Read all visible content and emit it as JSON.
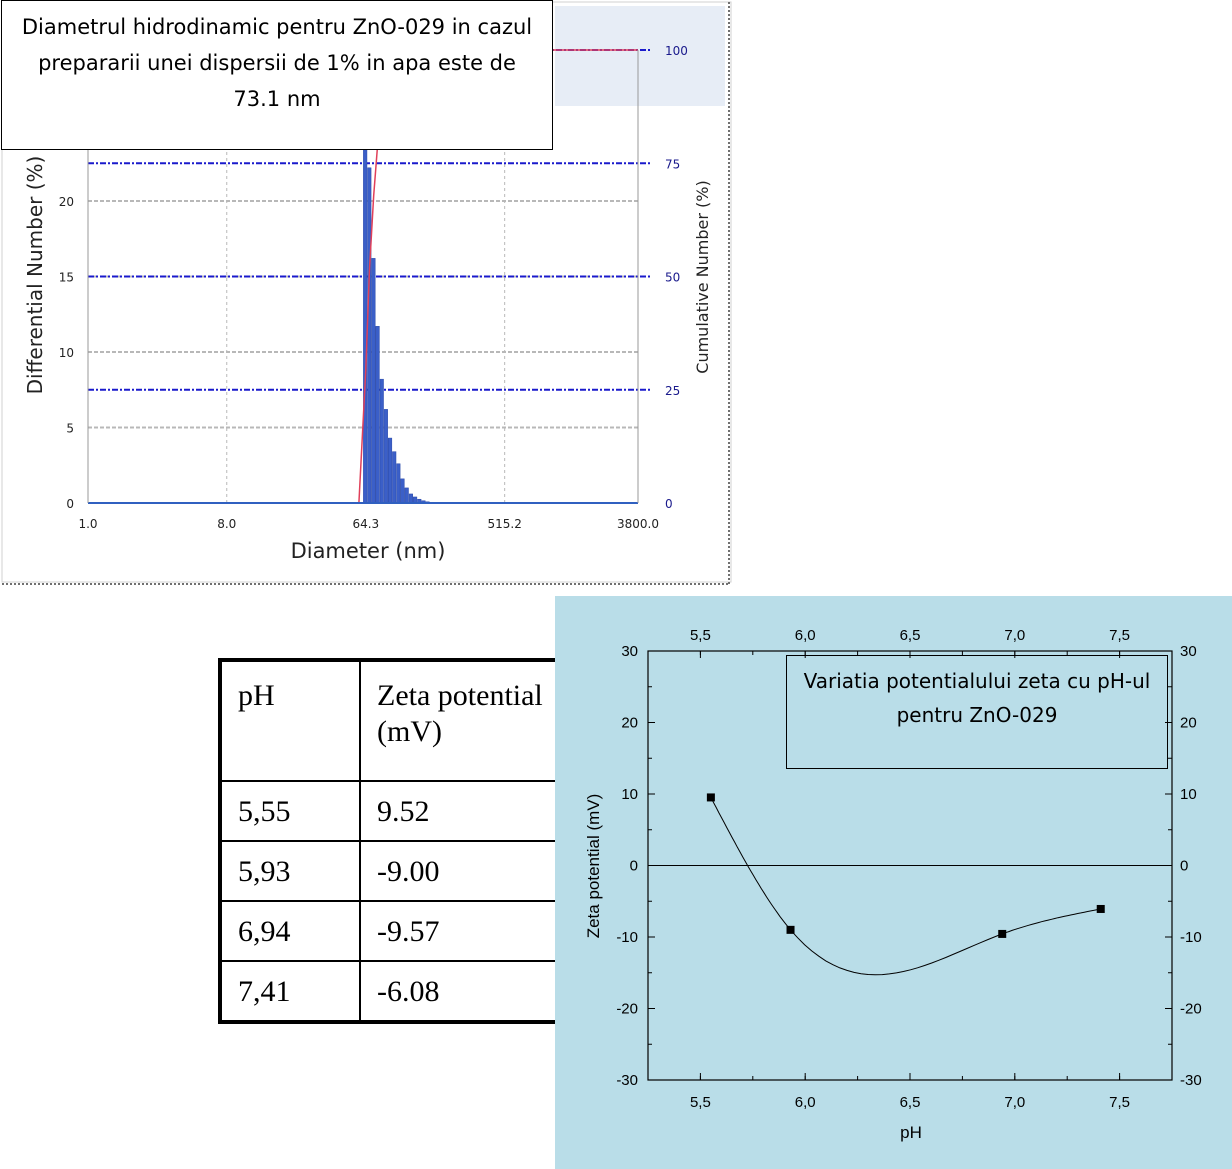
{
  "size_distribution_caption": "Diametrul hidrodinamic pentru ZnO-029 in cazul prepararii unei dispersii de 1% in apa este de 73.1 nm",
  "zeta_caption": "Variatia potentialului zeta cu pH-ul pentru ZnO-029",
  "table": {
    "headers": [
      "pH",
      "Zeta potential (mV)"
    ],
    "rows": [
      [
        "5,55",
        "9.52"
      ],
      [
        "5,93",
        "-9.00"
      ],
      [
        "6,94",
        "-9.57"
      ],
      [
        "7,41",
        "-6.08"
      ]
    ]
  },
  "chart_data": [
    {
      "type": "bar",
      "xlabel": "Diameter (nm)",
      "ylabel": "Differential Number (%)",
      "y2label": "Cumulative Number (%)",
      "xscale": "log",
      "xlim": [
        1.0,
        3800.0
      ],
      "x_ticks": [
        "1.0",
        "8.0",
        "64.3",
        "515.2",
        "3800.0"
      ],
      "ylim": [
        0,
        30
      ],
      "y_ticks": [
        "0",
        "5",
        "10",
        "15",
        "20"
      ],
      "y2lim": [
        0,
        100
      ],
      "y2_ticks": [
        "0",
        "25",
        "50",
        "75",
        "100"
      ],
      "colors": {
        "bars": "#3b5fc8",
        "cumulative": "#e0405a",
        "y2_gridlines": "#1a1acc",
        "grid": "#b8b8b8"
      },
      "series": [
        {
          "kind": "bars",
          "bins": [
            {
              "x": 62,
              "y": 29.5
            },
            {
              "x": 66,
              "y": 22.2
            },
            {
              "x": 70.2,
              "y": 16.2
            },
            {
              "x": 74.7,
              "y": 11.7
            },
            {
              "x": 79.5,
              "y": 8.2
            },
            {
              "x": 84.6,
              "y": 6.2
            },
            {
              "x": 90,
              "y": 4.3
            },
            {
              "x": 95.8,
              "y": 3.4
            },
            {
              "x": 102,
              "y": 2.6
            },
            {
              "x": 108.5,
              "y": 1.6
            },
            {
              "x": 115.5,
              "y": 1.0
            },
            {
              "x": 123,
              "y": 0.6
            },
            {
              "x": 131,
              "y": 0.4
            },
            {
              "x": 139.5,
              "y": 0.25
            },
            {
              "x": 148.5,
              "y": 0.15
            },
            {
              "x": 158,
              "y": 0.08
            },
            {
              "x": 168,
              "y": 0.05
            }
          ]
        },
        {
          "kind": "cumulative_line",
          "axis": "y2",
          "points": [
            {
              "x": 58,
              "y": 0
            },
            {
              "x": 64.3,
              "y": 29.5
            },
            {
              "x": 68,
              "y": 51.7
            },
            {
              "x": 72.4,
              "y": 67.9
            },
            {
              "x": 77,
              "y": 79.6
            },
            {
              "x": 82,
              "y": 87.8
            },
            {
              "x": 87.2,
              "y": 94
            },
            {
              "x": 95,
              "y": 98
            },
            {
              "x": 115,
              "y": 100
            },
            {
              "x": 3800,
              "y": 100
            }
          ]
        }
      ]
    },
    {
      "type": "line",
      "xlabel": "pH",
      "ylabel": "Zeta potential (mV)",
      "xlim": [
        5.25,
        7.75
      ],
      "ylim": [
        -30,
        30
      ],
      "x_ticks": [
        "5,5",
        "6,0",
        "6,5",
        "7,0",
        "7,5"
      ],
      "y_ticks": [
        "-30",
        "-20",
        "-10",
        "0",
        "10",
        "20",
        "30"
      ],
      "mirror_axes": true,
      "zero_line": true,
      "colors": {
        "background": "#b9dde8",
        "line": "#000000"
      },
      "series": [
        {
          "x": [
            5.55,
            5.93,
            6.94,
            7.41
          ],
          "y": [
            9.52,
            -9.0,
            -9.57,
            -6.08
          ],
          "marker": "square",
          "smooth": true
        }
      ]
    }
  ]
}
